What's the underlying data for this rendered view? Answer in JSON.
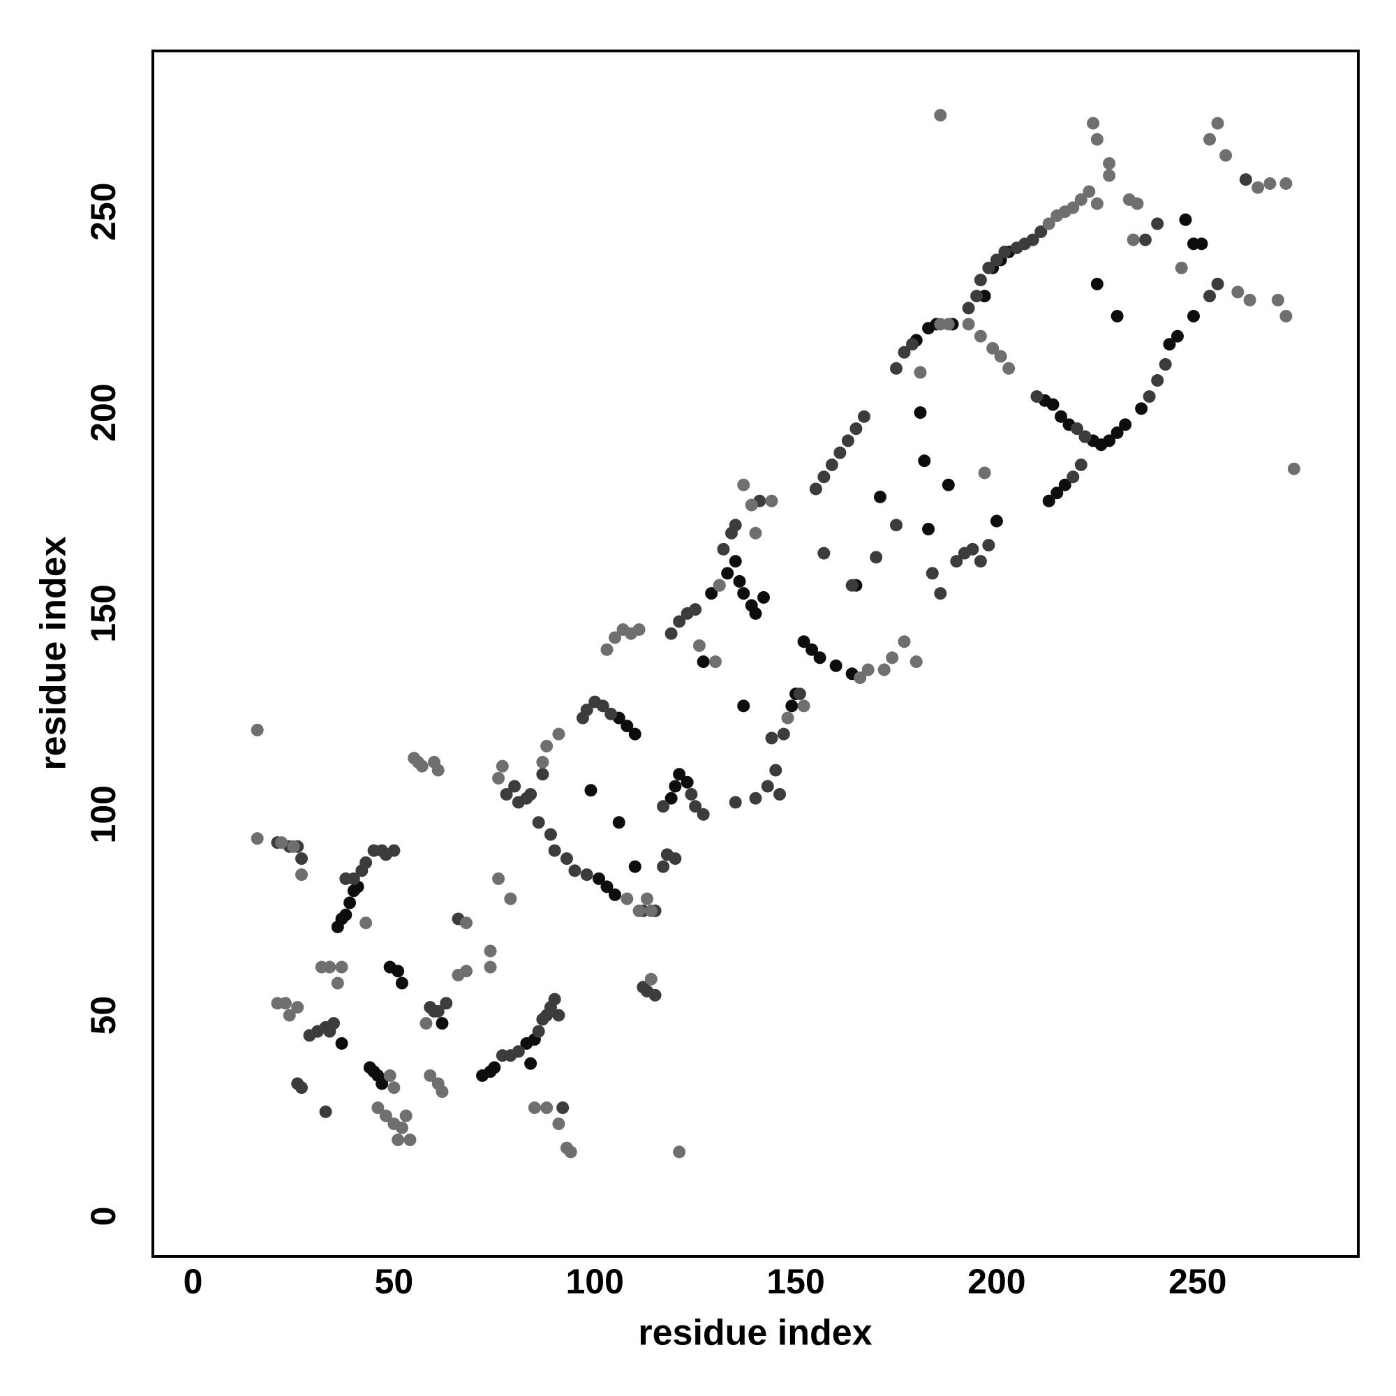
{
  "chart_data": {
    "type": "scatter",
    "x_label": "residue index",
    "y_label": "residue index",
    "xlim": [
      -10,
      290
    ],
    "ylim": [
      -10,
      290
    ],
    "xticks": [
      0,
      50,
      100,
      150,
      200,
      250
    ],
    "yticks": [
      0,
      50,
      100,
      150,
      200,
      250
    ],
    "series": [
      {
        "color": "#0d0d0d",
        "x": [
          36,
          37,
          38,
          39,
          40,
          41,
          44,
          45,
          46,
          47,
          49,
          51,
          52,
          37,
          62,
          72,
          74,
          75,
          83,
          85,
          84,
          101,
          103,
          105,
          110,
          108,
          106,
          110,
          99,
          106,
          119,
          120,
          121,
          123,
          129,
          131,
          133,
          135,
          136,
          137,
          139,
          140,
          142,
          127,
          137,
          149,
          150,
          152,
          154,
          156,
          160,
          164,
          165,
          171,
          181,
          182,
          183,
          188,
          200,
          180,
          183,
          185,
          189,
          197,
          199,
          201,
          203,
          212,
          214,
          216,
          218,
          222,
          224,
          226,
          228,
          230,
          232,
          236,
          243,
          245,
          249,
          251,
          213,
          215,
          217,
          225,
          230,
          247,
          249
        ],
        "y": [
          72,
          74,
          75,
          78,
          81,
          82,
          37,
          36,
          35,
          33,
          62,
          61,
          58,
          43,
          48,
          35,
          36,
          37,
          43,
          44,
          38,
          84,
          82,
          80,
          87,
          122,
          124,
          120,
          106,
          98,
          104,
          107,
          110,
          108,
          155,
          157,
          160,
          163,
          158,
          155,
          152,
          150,
          154,
          138,
          127,
          127,
          130,
          143,
          141,
          139,
          137,
          135,
          157,
          179,
          200,
          188,
          171,
          182,
          173,
          218,
          221,
          222,
          222,
          229,
          236,
          238,
          240,
          203,
          202,
          199,
          197,
          194,
          193,
          192,
          193,
          195,
          197,
          201,
          217,
          219,
          224,
          242,
          178,
          180,
          182,
          232,
          224,
          248,
          242
        ]
      },
      {
        "color": "#3c3c3c",
        "x": [
          21,
          24,
          26,
          27,
          29,
          31,
          33,
          34,
          35,
          27,
          33,
          26,
          38,
          40,
          42,
          43,
          45,
          47,
          48,
          50,
          59,
          60,
          61,
          63,
          66,
          77,
          79,
          81,
          86,
          87,
          88,
          89,
          90,
          91,
          92,
          78,
          80,
          81,
          83,
          84,
          87,
          86,
          89,
          90,
          93,
          95,
          98,
          112,
          115,
          117,
          118,
          120,
          112,
          113,
          115,
          97,
          98,
          100,
          102,
          104,
          117,
          124,
          125,
          127,
          119,
          121,
          123,
          125,
          132,
          134,
          135,
          141,
          135,
          140,
          143,
          145,
          146,
          144,
          147,
          151,
          155,
          157,
          159,
          161,
          163,
          165,
          167,
          157,
          164,
          170,
          175,
          184,
          186,
          190,
          192,
          194,
          196,
          198,
          175,
          177,
          179,
          193,
          195,
          196,
          198,
          200,
          202,
          205,
          207,
          209,
          211,
          220,
          222,
          238,
          240,
          242,
          210,
          219,
          221,
          237,
          240,
          255,
          253,
          262
        ],
        "y": [
          93,
          92,
          92,
          89,
          45,
          46,
          47,
          46,
          48,
          32,
          26,
          33,
          84,
          84,
          86,
          88,
          91,
          91,
          90,
          91,
          52,
          51,
          51,
          53,
          74,
          40,
          40,
          41,
          46,
          49,
          50,
          52,
          54,
          50,
          27,
          105,
          107,
          103,
          104,
          105,
          110,
          98,
          95,
          91,
          89,
          86,
          85,
          76,
          76,
          87,
          90,
          89,
          57,
          56,
          55,
          124,
          126,
          128,
          127,
          125,
          102,
          105,
          102,
          100,
          145,
          148,
          150,
          151,
          166,
          170,
          172,
          178,
          103,
          104,
          107,
          111,
          105,
          119,
          120,
          130,
          181,
          184,
          187,
          190,
          193,
          196,
          199,
          165,
          157,
          164,
          172,
          160,
          155,
          163,
          165,
          166,
          163,
          167,
          211,
          215,
          217,
          226,
          229,
          233,
          236,
          238,
          240,
          241,
          242,
          243,
          245,
          196,
          194,
          204,
          208,
          212,
          204,
          184,
          187,
          243,
          247,
          232,
          229,
          258
        ]
      },
      {
        "color": "#6f6f6f",
        "x": [
          16,
          16,
          22,
          25,
          27,
          21,
          23,
          24,
          26,
          32,
          34,
          36,
          37,
          43,
          46,
          48,
          50,
          52,
          54,
          51,
          53,
          49,
          50,
          55,
          56,
          57,
          60,
          61,
          58,
          59,
          61,
          62,
          68,
          66,
          68,
          74,
          74,
          76,
          79,
          85,
          88,
          91,
          93,
          94,
          121,
          76,
          77,
          87,
          88,
          91,
          108,
          111,
          113,
          114,
          114,
          103,
          105,
          107,
          109,
          111,
          126,
          130,
          131,
          137,
          139,
          140,
          144,
          148,
          152,
          166,
          168,
          172,
          174,
          177,
          180,
          181,
          186,
          188,
          193,
          196,
          199,
          201,
          203,
          197,
          213,
          215,
          217,
          219,
          221,
          223,
          225,
          228,
          233,
          235,
          224,
          225,
          228,
          186,
          253,
          255,
          257,
          265,
          268,
          272,
          270,
          272,
          274,
          260,
          263,
          234,
          246
        ],
        "y": [
          121,
          94,
          93,
          92,
          85,
          53,
          53,
          50,
          52,
          62,
          62,
          58,
          62,
          73,
          27,
          25,
          23,
          22,
          19,
          19,
          25,
          35,
          32,
          114,
          113,
          112,
          113,
          111,
          48,
          35,
          33,
          31,
          73,
          60,
          61,
          66,
          62,
          84,
          79,
          27,
          27,
          23,
          17,
          16,
          16,
          109,
          112,
          113,
          117,
          120,
          79,
          76,
          79,
          76,
          59,
          141,
          144,
          146,
          145,
          146,
          142,
          138,
          157,
          182,
          177,
          170,
          178,
          124,
          127,
          134,
          136,
          136,
          139,
          143,
          138,
          210,
          222,
          222,
          222,
          219,
          216,
          214,
          211,
          185,
          247,
          249,
          250,
          251,
          253,
          255,
          252,
          259,
          253,
          252,
          272,
          268,
          262,
          274,
          268,
          272,
          264,
          256,
          257,
          257,
          228,
          224,
          186,
          230,
          228,
          243,
          236
        ]
      }
    ]
  }
}
